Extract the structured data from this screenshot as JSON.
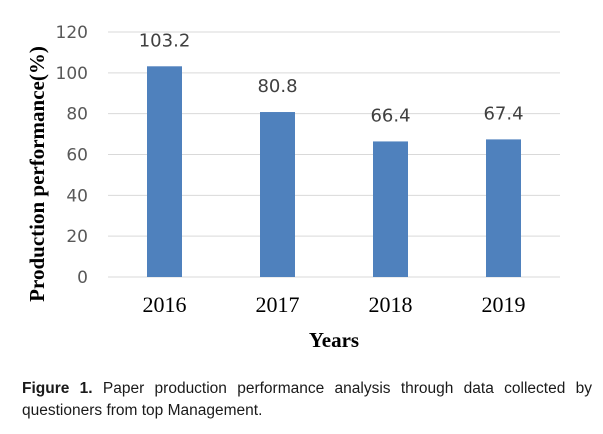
{
  "chart_data": {
    "type": "bar",
    "categories": [
      "2016",
      "2017",
      "2018",
      "2019"
    ],
    "values": [
      103.2,
      80.8,
      66.4,
      67.4
    ],
    "data_labels": [
      "103.2",
      "80.8",
      "66.4",
      "67.4"
    ],
    "title": "",
    "xlabel": "Years",
    "ylabel": "Production performance(%)",
    "ylim": [
      0,
      120
    ],
    "yticks": [
      0,
      20,
      40,
      60,
      80,
      100,
      120
    ],
    "grid": true,
    "legend": "none",
    "bar_color": "#4f81bd",
    "grid_color": "#d9d9d9"
  },
  "caption": {
    "label": "Figure 1.",
    "text": " Paper production performance analysis through data collected by questioners from top Management."
  }
}
